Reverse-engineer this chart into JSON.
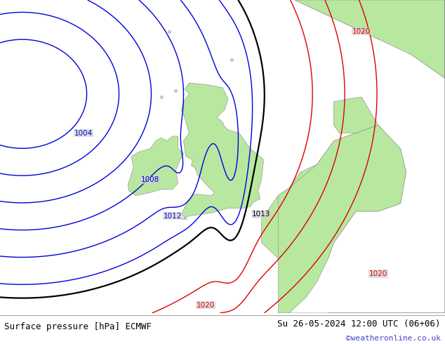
{
  "title_left": "Surface pressure [hPa] ECMWF",
  "title_right": "Su 26-05-2024 12:00 UTC (06+06)",
  "credit": "©weatheronline.co.uk",
  "bg_color": "#d0d0d0",
  "land_color": "#b8e8a0",
  "sea_color": "#d0d0d0",
  "border_color": "#888888",
  "contour_blue": "#0000dd",
  "contour_black": "#000000",
  "contour_red": "#dd0000",
  "figsize": [
    6.34,
    4.9
  ],
  "dpi": 100,
  "map_extent": [
    -22,
    18,
    44,
    64
  ],
  "labels": [
    {
      "text": "1004",
      "lon": -14.5,
      "lat": 55.5,
      "color": "#0000dd"
    },
    {
      "text": "1008",
      "lon": -8.5,
      "lat": 52.5,
      "color": "#0000dd"
    },
    {
      "text": "1012",
      "lon": -6.5,
      "lat": 50.2,
      "color": "#0000dd"
    },
    {
      "text": "1013",
      "lon": 1.5,
      "lat": 50.3,
      "color": "#000000"
    },
    {
      "text": "1020",
      "lon": 10.5,
      "lat": 62.0,
      "color": "#dd0000"
    },
    {
      "text": "1020",
      "lon": -3.5,
      "lat": 44.5,
      "color": "#dd0000"
    },
    {
      "text": "1020",
      "lon": 12.0,
      "lat": 46.5,
      "color": "#dd0000"
    }
  ]
}
